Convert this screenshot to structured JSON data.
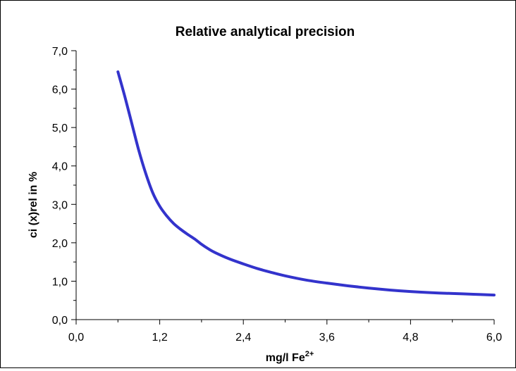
{
  "chart_data": {
    "type": "line",
    "title": "Relative analytical precision",
    "ylabel": "ci (x)rel in %",
    "xlabel": {
      "base": "mg/l Fe",
      "superscript": "2+"
    },
    "xlim": [
      0,
      6
    ],
    "ylim": [
      0,
      7
    ],
    "x_ticks": [
      "0,0",
      "1,2",
      "2,4",
      "3,6",
      "4,8",
      "6,0"
    ],
    "y_ticks": [
      "0,0",
      "1,0",
      "2,0",
      "3,0",
      "4,0",
      "5,0",
      "6,0",
      "7,0"
    ],
    "grid": false,
    "legend": "none",
    "series": [
      {
        "color": "#3333cc",
        "x": [
          0.6,
          0.7,
          0.8,
          0.9,
          1.0,
          1.1,
          1.2,
          1.3,
          1.4,
          1.5,
          1.6,
          1.7,
          1.8,
          1.9,
          2.0,
          2.2,
          2.4,
          2.6,
          2.8,
          3.0,
          3.3,
          3.6,
          3.9,
          4.2,
          4.5,
          4.8,
          5.1,
          5.4,
          5.7,
          6.0
        ],
        "y": [
          6.45,
          5.8,
          5.1,
          4.4,
          3.8,
          3.3,
          2.95,
          2.7,
          2.5,
          2.35,
          2.22,
          2.1,
          1.96,
          1.84,
          1.74,
          1.58,
          1.45,
          1.33,
          1.23,
          1.14,
          1.03,
          0.95,
          0.88,
          0.82,
          0.77,
          0.73,
          0.7,
          0.68,
          0.66,
          0.64
        ]
      }
    ]
  }
}
